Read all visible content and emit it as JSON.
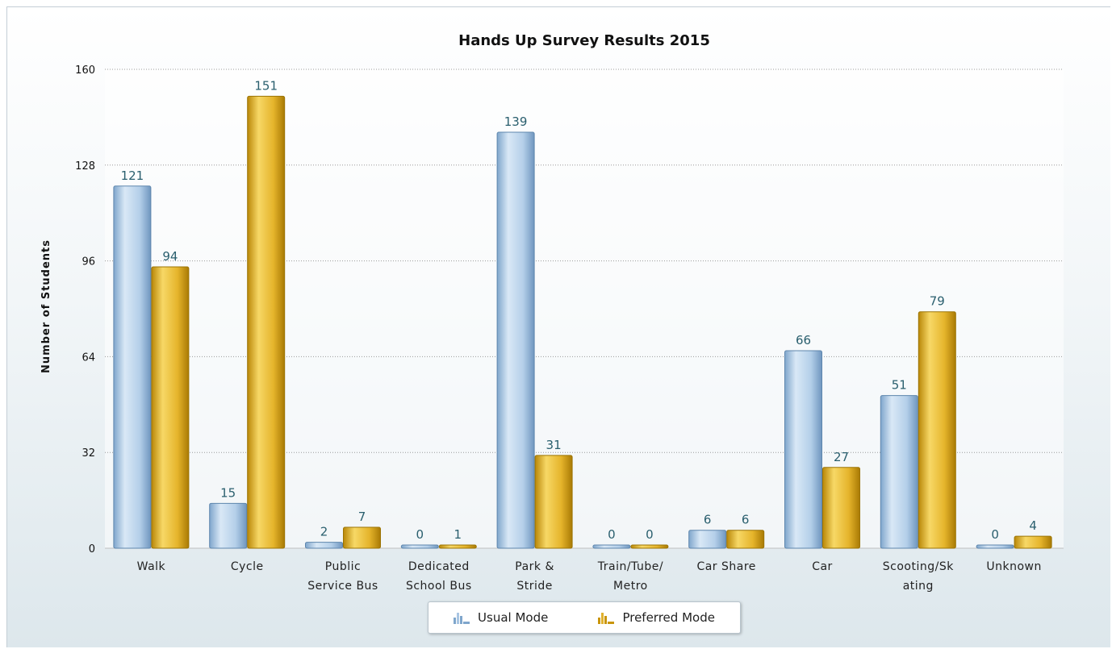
{
  "chart_data": {
    "type": "bar",
    "title": "Hands Up Survey Results 2015",
    "xlabel": "",
    "ylabel": "Number of Students",
    "ylim": [
      0,
      160
    ],
    "yticks": [
      "0",
      "32",
      "64",
      "96",
      "128",
      "160"
    ],
    "grid": true,
    "legend_position": "bottom-center",
    "categories": [
      [
        "Walk"
      ],
      [
        "Cycle"
      ],
      [
        "Public",
        "Service Bus"
      ],
      [
        "Dedicated",
        "School Bus"
      ],
      [
        "Park &",
        "Stride"
      ],
      [
        "Train/Tube/",
        "Metro"
      ],
      [
        "Car Share"
      ],
      [
        "Car"
      ],
      [
        "Scooting/Sk",
        "ating"
      ],
      [
        "Unknown"
      ]
    ],
    "series": [
      {
        "name": "Usual Mode",
        "color": "#a9c6e3",
        "values": [
          121,
          15,
          2,
          0,
          139,
          0,
          6,
          66,
          51,
          0
        ]
      },
      {
        "name": "Preferred Mode",
        "color": "#e0b12e",
        "values": [
          94,
          151,
          7,
          1,
          31,
          0,
          6,
          27,
          79,
          4
        ]
      }
    ]
  },
  "legend": {
    "usual_label": "Usual Mode",
    "preferred_label": "Preferred Mode"
  }
}
